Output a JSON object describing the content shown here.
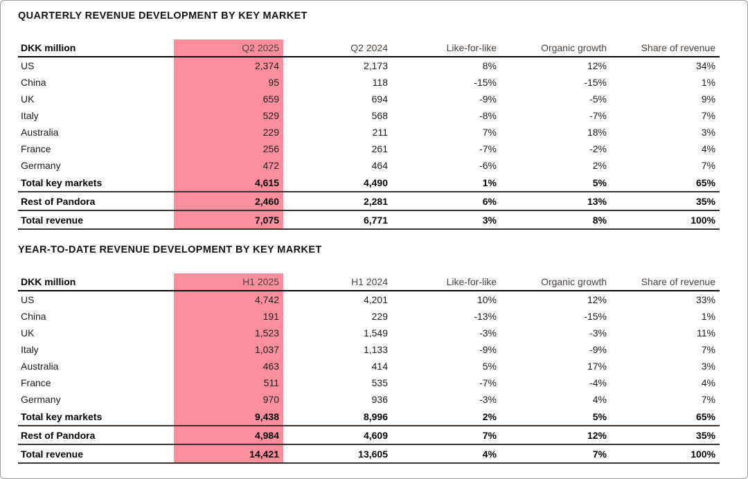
{
  "colors": {
    "highlight": "#fc8f9e",
    "header_text": "#4a423d",
    "body_text": "#1d1b1a",
    "rule_header": "#000000",
    "rule_total": "#38302b",
    "border_color": "#9a9a9a"
  },
  "tables": [
    {
      "title": "QUARTERLY REVENUE DEVELOPMENT BY KEY MARKET",
      "unit_label": "DKK million",
      "highlight_column": "Q2 2025",
      "columns": [
        "DKK million",
        "Q2 2025",
        "Q2 2024",
        "Like-for-like",
        "Organic growth",
        "Share of revenue"
      ],
      "rows": [
        {
          "label": "US",
          "values": [
            "2,374",
            "2,173",
            "8%",
            "12%",
            "34%"
          ],
          "bold": false
        },
        {
          "label": "China",
          "values": [
            "95",
            "118",
            "-15%",
            "-15%",
            "1%"
          ],
          "bold": false
        },
        {
          "label": "UK",
          "values": [
            "659",
            "694",
            "-9%",
            "-5%",
            "9%"
          ],
          "bold": false
        },
        {
          "label": "Italy",
          "values": [
            "529",
            "568",
            "-8%",
            "-7%",
            "7%"
          ],
          "bold": false
        },
        {
          "label": "Australia",
          "values": [
            "229",
            "211",
            "7%",
            "18%",
            "3%"
          ],
          "bold": false
        },
        {
          "label": "France",
          "values": [
            "256",
            "261",
            "-7%",
            "-2%",
            "4%"
          ],
          "bold": false
        },
        {
          "label": "Germany",
          "values": [
            "472",
            "464",
            "-6%",
            "2%",
            "7%"
          ],
          "bold": false
        },
        {
          "label": "Total key markets",
          "values": [
            "4,615",
            "4,490",
            "1%",
            "5%",
            "65%"
          ],
          "bold": true
        },
        {
          "label": "Rest of Pandora",
          "values": [
            "2,460",
            "2,281",
            "6%",
            "13%",
            "35%"
          ],
          "bold": true
        },
        {
          "label": "Total revenue",
          "values": [
            "7,075",
            "6,771",
            "3%",
            "8%",
            "100%"
          ],
          "bold": true
        }
      ]
    },
    {
      "title": "YEAR-TO-DATE REVENUE DEVELOPMENT BY KEY MARKET",
      "unit_label": "DKK million",
      "highlight_column": "H1 2025",
      "columns": [
        "DKK million",
        "H1 2025",
        "H1 2024",
        "Like-for-like",
        "Organic growth",
        "Share of revenue"
      ],
      "rows": [
        {
          "label": "US",
          "values": [
            "4,742",
            "4,201",
            "10%",
            "12%",
            "33%"
          ],
          "bold": false
        },
        {
          "label": "China",
          "values": [
            "191",
            "229",
            "-13%",
            "-15%",
            "1%"
          ],
          "bold": false
        },
        {
          "label": "UK",
          "values": [
            "1,523",
            "1,549",
            "-3%",
            "-3%",
            "11%"
          ],
          "bold": false
        },
        {
          "label": "Italy",
          "values": [
            "1,037",
            "1,133",
            "-9%",
            "-9%",
            "7%"
          ],
          "bold": false
        },
        {
          "label": "Australia",
          "values": [
            "463",
            "414",
            "5%",
            "17%",
            "3%"
          ],
          "bold": false
        },
        {
          "label": "France",
          "values": [
            "511",
            "535",
            "-7%",
            "-4%",
            "4%"
          ],
          "bold": false
        },
        {
          "label": "Germany",
          "values": [
            "970",
            "936",
            "-3%",
            "4%",
            "7%"
          ],
          "bold": false
        },
        {
          "label": "Total key markets",
          "values": [
            "9,438",
            "8,996",
            "2%",
            "5%",
            "65%"
          ],
          "bold": true
        },
        {
          "label": "Rest of Pandora",
          "values": [
            "4,984",
            "4,609",
            "7%",
            "12%",
            "35%"
          ],
          "bold": true
        },
        {
          "label": "Total revenue",
          "values": [
            "14,421",
            "13,605",
            "4%",
            "7%",
            "100%"
          ],
          "bold": true
        }
      ]
    }
  ]
}
